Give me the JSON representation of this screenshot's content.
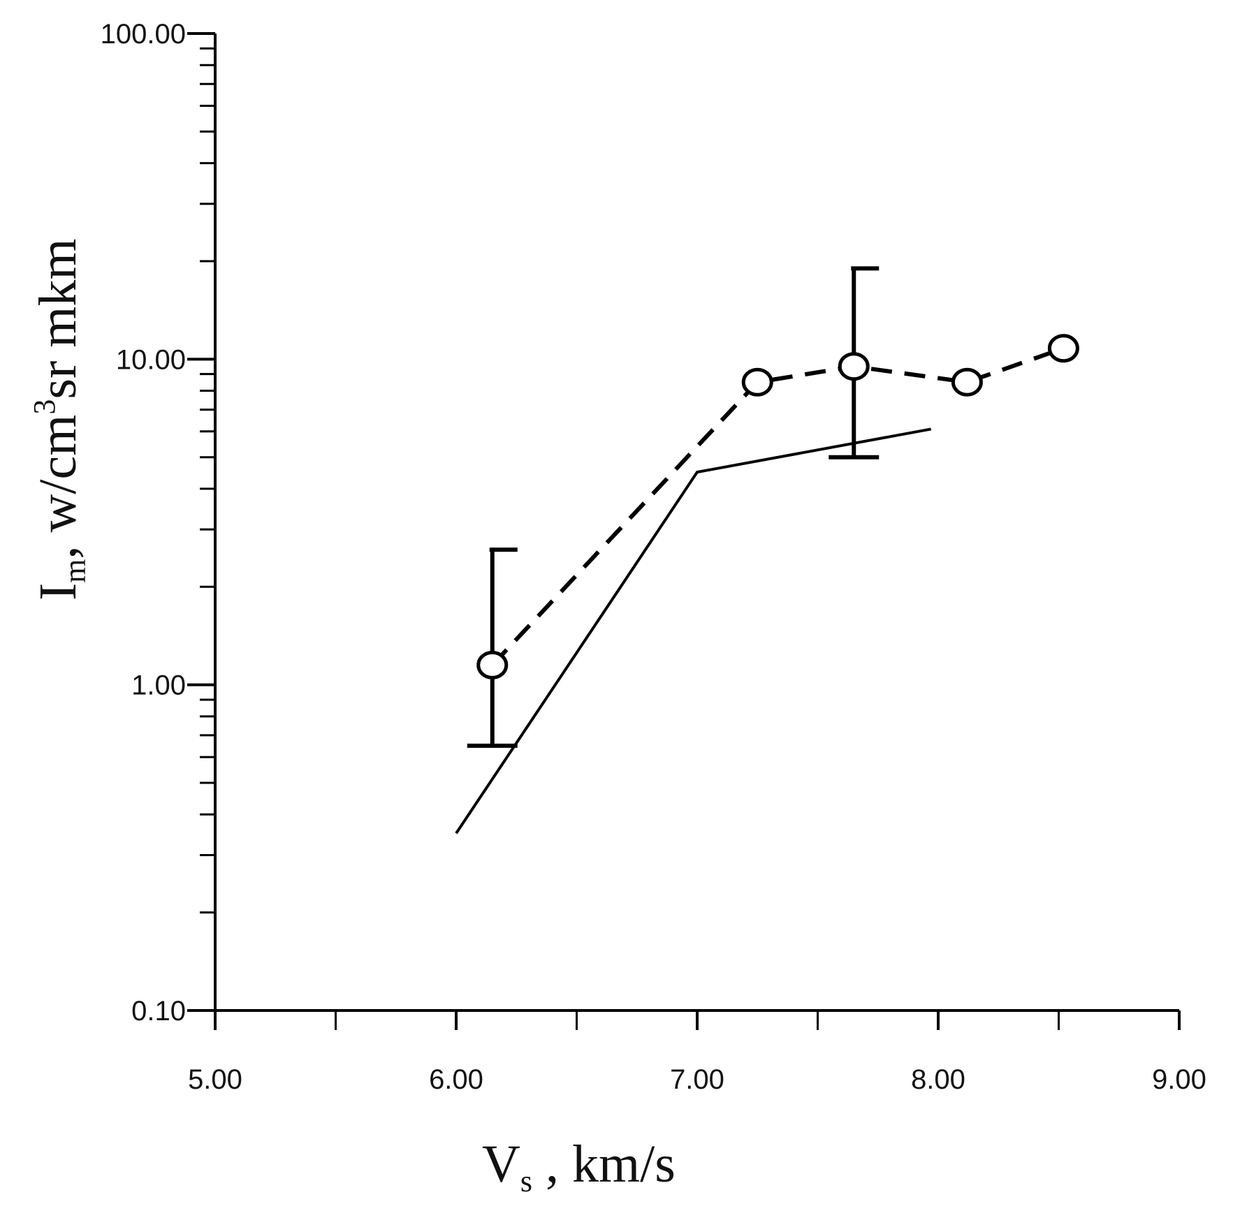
{
  "chart_data": {
    "type": "line",
    "xlabel": {
      "main": "V",
      "sub": "s",
      "rest": " , km/s"
    },
    "ylabel": {
      "main": "I",
      "sub": "m",
      "rest1": ", w/cm",
      "sup": "3",
      "rest2": "sr mkm"
    },
    "xlim": [
      5,
      9
    ],
    "ylim": [
      0.1,
      100
    ],
    "yscale": "log",
    "x_ticks": [
      5,
      6,
      7,
      8,
      9
    ],
    "x_tick_labels": [
      "5.00",
      "6.00",
      "7.00",
      "8.00",
      "9.00"
    ],
    "y_ticks": [
      0.1,
      1,
      10,
      100
    ],
    "y_tick_labels": [
      "0.10",
      "1.00",
      "10.00",
      "100.00"
    ],
    "grid": false,
    "series": [
      {
        "style": "dashed-line-open-circles",
        "color": "#000000",
        "points": [
          {
            "x": 6.15,
            "y": 1.15
          },
          {
            "x": 7.25,
            "y": 8.5
          },
          {
            "x": 7.65,
            "y": 9.5
          },
          {
            "x": 8.12,
            "y": 8.5
          },
          {
            "x": 8.52,
            "y": 10.8
          }
        ],
        "error_bars": [
          {
            "x": 6.15,
            "low": 0.65,
            "high": 2.6
          },
          {
            "x": 7.65,
            "low": 5.0,
            "high": 19.0
          }
        ]
      },
      {
        "style": "solid-line",
        "color": "#000000",
        "points": [
          {
            "x": 6.0,
            "y": 0.35
          },
          {
            "x": 7.0,
            "y": 4.5
          },
          {
            "x": 7.97,
            "y": 6.1
          }
        ]
      }
    ]
  }
}
